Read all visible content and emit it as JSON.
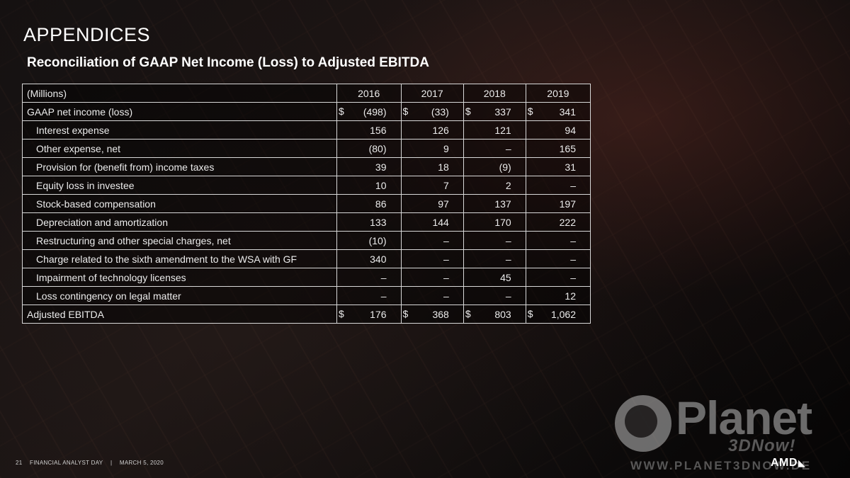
{
  "slide": {
    "title": "APPENDICES",
    "subtitle": "Reconciliation of GAAP Net Income (Loss) to Adjusted EBITDA"
  },
  "table": {
    "header": {
      "label": "(Millions)",
      "years": [
        "2016",
        "2017",
        "2018",
        "2019"
      ]
    },
    "rows": [
      {
        "label": "GAAP net income (loss)",
        "dollar": true,
        "indent": false,
        "values": [
          "(498)",
          "(33)",
          "337",
          "341"
        ]
      },
      {
        "label": "Interest expense",
        "dollar": false,
        "indent": true,
        "values": [
          "156",
          "126",
          "121",
          "94"
        ]
      },
      {
        "label": "Other expense, net",
        "dollar": false,
        "indent": true,
        "values": [
          "(80)",
          "9",
          "–",
          "165"
        ]
      },
      {
        "label": "Provision for (benefit from) income taxes",
        "dollar": false,
        "indent": true,
        "values": [
          "39",
          "18",
          "(9)",
          "31"
        ]
      },
      {
        "label": "Equity loss in investee",
        "dollar": false,
        "indent": true,
        "values": [
          "10",
          "7",
          "2",
          "–"
        ]
      },
      {
        "label": "Stock-based compensation",
        "dollar": false,
        "indent": true,
        "values": [
          "86",
          "97",
          "137",
          "197"
        ]
      },
      {
        "label": "Depreciation and amortization",
        "dollar": false,
        "indent": true,
        "values": [
          "133",
          "144",
          "170",
          "222"
        ]
      },
      {
        "label": "Restructuring and other special charges, net",
        "dollar": false,
        "indent": true,
        "values": [
          "(10)",
          "–",
          "–",
          "–"
        ]
      },
      {
        "label": "Charge related to the sixth amendment to the WSA with GF",
        "dollar": false,
        "indent": true,
        "values": [
          "340",
          "–",
          "–",
          "–"
        ]
      },
      {
        "label": "Impairment of technology licenses",
        "dollar": false,
        "indent": true,
        "values": [
          "–",
          "–",
          "45",
          "–"
        ]
      },
      {
        "label": "Loss contingency on legal matter",
        "dollar": false,
        "indent": true,
        "values": [
          "–",
          "–",
          "–",
          "12"
        ]
      },
      {
        "label": "Adjusted EBITDA",
        "dollar": true,
        "indent": false,
        "values": [
          "176",
          "368",
          "803",
          "1,062"
        ]
      }
    ],
    "currency_symbol": "$"
  },
  "footer": {
    "page_number": "21",
    "event": "FINANCIAL ANALYST DAY",
    "separator": "|",
    "date": "MARCH 5, 2020"
  },
  "watermark": {
    "name": "Planet",
    "tagline": "3DNow!",
    "url": "WWW.PLANET3DNOW.DE"
  },
  "brand": {
    "logo_text": "AMD",
    "arrow_glyph": "◣"
  },
  "colors": {
    "background": "#0b0909",
    "text": "#ffffff",
    "table_border": "#d8d8d8"
  }
}
